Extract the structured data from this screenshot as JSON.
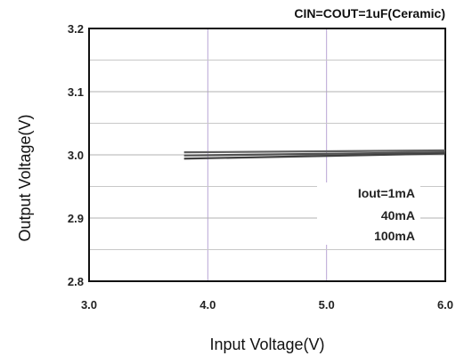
{
  "chart_data": {
    "type": "line",
    "title": "CIN=COUT=1uF(Ceramic)",
    "xlabel": "Input Voltage(V)",
    "ylabel": "Output Voltage(V)",
    "xlim": [
      3.0,
      6.0
    ],
    "ylim": [
      2.8,
      3.2
    ],
    "x_ticks": [
      "3.0",
      "4.0",
      "5.0",
      "6.0"
    ],
    "y_ticks": [
      "3.2",
      "3.1",
      "3.0",
      "2.9",
      "2.8"
    ],
    "grid": true,
    "legend_title": "Iout=1mA",
    "legend_position": "center-right",
    "series": [
      {
        "name": "Iout=1mA",
        "x": [
          3.8,
          6.0
        ],
        "y": [
          3.004,
          3.007
        ],
        "color": "#606060"
      },
      {
        "name": "40mA",
        "x": [
          3.8,
          6.0
        ],
        "y": [
          2.999,
          3.004
        ],
        "color": "#505050"
      },
      {
        "name": "100mA",
        "x": [
          3.8,
          6.0
        ],
        "y": [
          2.994,
          3.002
        ],
        "color": "#404040"
      }
    ],
    "legend_entries": [
      "Iout=1mA",
      "40mA",
      "100mA"
    ],
    "colors": {
      "axis": "#111111",
      "grid_minor": "#c8c8c8",
      "grid_major": "#b9a6d6"
    }
  }
}
